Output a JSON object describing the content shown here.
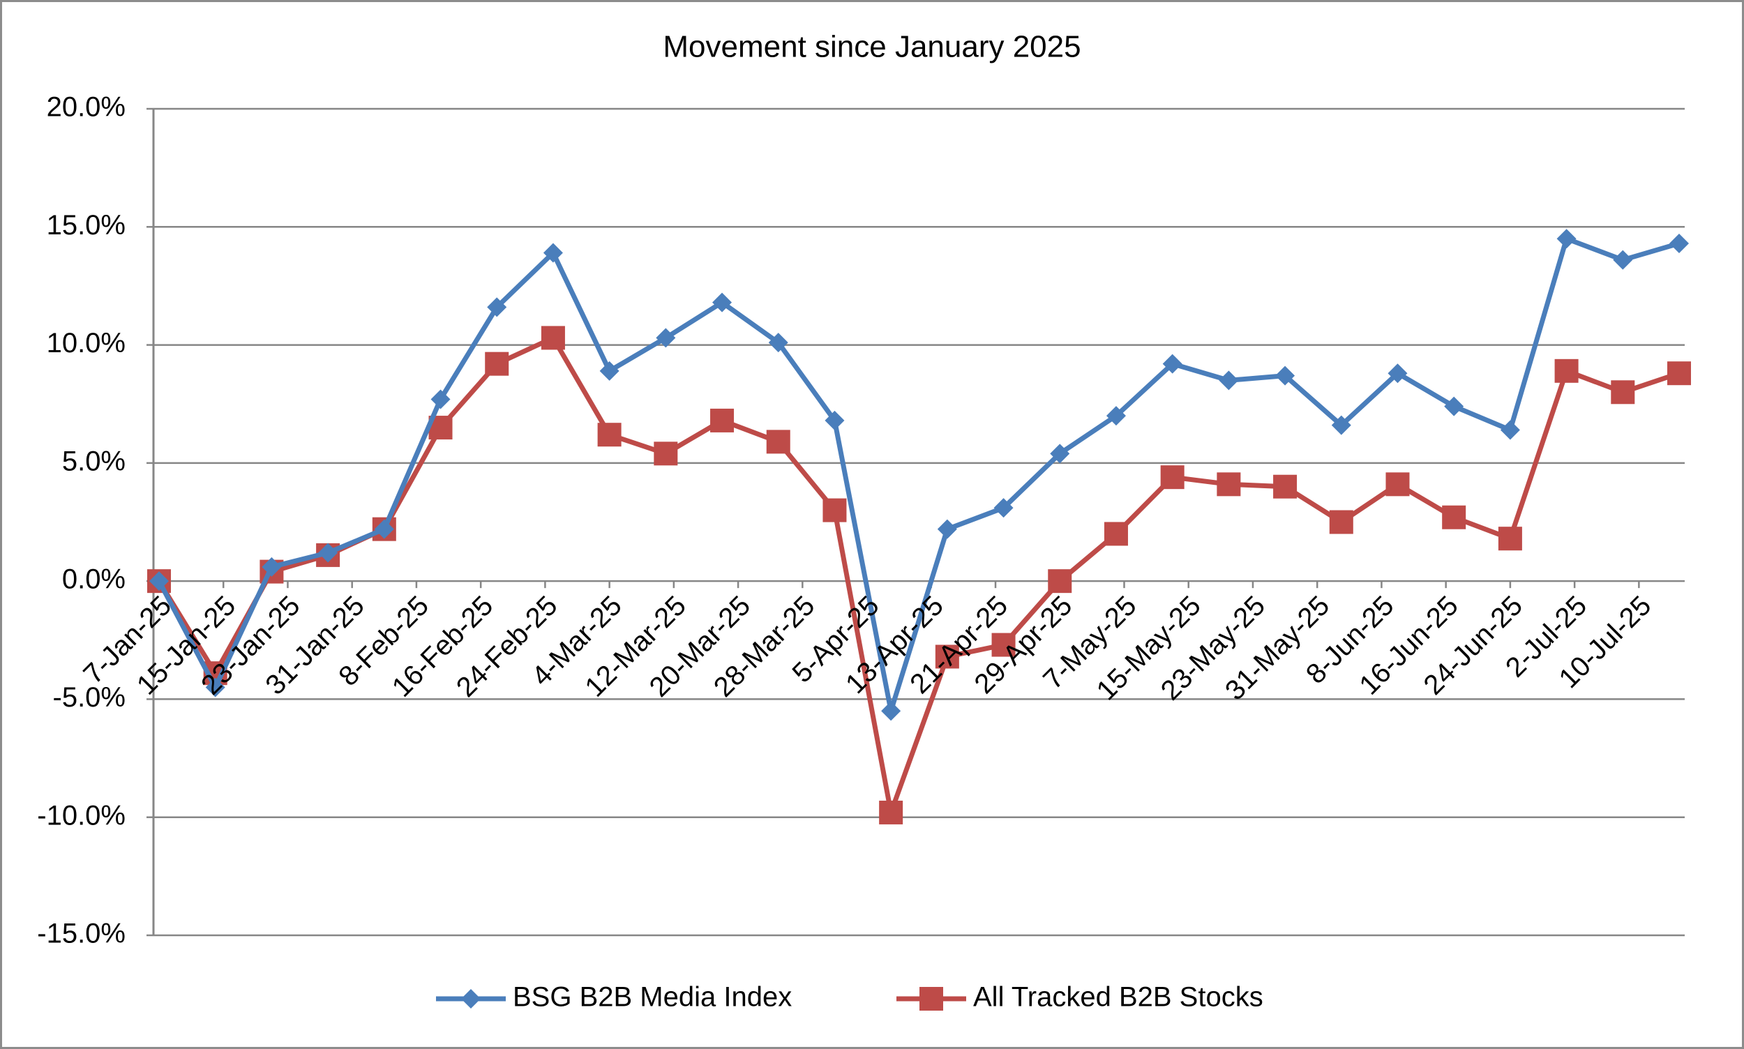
{
  "chart_data": {
    "type": "line",
    "title": "Movement since January 2025",
    "x": [
      "2025-01-07",
      "2025-01-14",
      "2025-01-21",
      "2025-01-28",
      "2025-02-04",
      "2025-02-11",
      "2025-02-18",
      "2025-02-25",
      "2025-03-04",
      "2025-03-11",
      "2025-03-18",
      "2025-03-25",
      "2025-04-01",
      "2025-04-08",
      "2025-04-15",
      "2025-04-22",
      "2025-04-29",
      "2025-05-06",
      "2025-05-13",
      "2025-05-20",
      "2025-05-27",
      "2025-06-03",
      "2025-06-10",
      "2025-06-17",
      "2025-06-24",
      "2025-07-01",
      "2025-07-08",
      "2025-07-15"
    ],
    "series": [
      {
        "name": "BSG B2B Media Index",
        "color": "#4a7ebb",
        "marker": "diamond",
        "values": [
          0,
          -4.5,
          0.6,
          1.2,
          2.2,
          7.7,
          11.6,
          13.9,
          8.9,
          10.3,
          11.8,
          10.1,
          6.8,
          -5.5,
          2.2,
          3.1,
          5.4,
          7.0,
          9.2,
          8.5,
          8.7,
          6.6,
          8.8,
          7.4,
          6.4,
          14.5,
          13.6,
          14.3
        ]
      },
      {
        "name": "All Tracked B2B Stocks",
        "color": "#be4b48",
        "marker": "square",
        "values": [
          0,
          -3.9,
          0.4,
          1.1,
          2.2,
          6.5,
          9.2,
          10.3,
          6.2,
          5.4,
          6.8,
          5.9,
          3.0,
          -9.8,
          -3.2,
          -2.7,
          0.0,
          2.0,
          4.4,
          4.1,
          4.0,
          2.5,
          4.1,
          2.7,
          1.8,
          8.9,
          8.0,
          8.8
        ]
      }
    ],
    "xlim": [
      "2025-01-07",
      "2025-07-15"
    ],
    "xticks": [
      {
        "value": "2025-01-07",
        "label": "7-Jan-25"
      },
      {
        "value": "2025-01-15",
        "label": "15-Jan-25"
      },
      {
        "value": "2025-01-23",
        "label": "23-Jan-25"
      },
      {
        "value": "2025-01-31",
        "label": "31-Jan-25"
      },
      {
        "value": "2025-02-08",
        "label": "8-Feb-25"
      },
      {
        "value": "2025-02-16",
        "label": "16-Feb-25"
      },
      {
        "value": "2025-02-24",
        "label": "24-Feb-25"
      },
      {
        "value": "2025-03-04",
        "label": "4-Mar-25"
      },
      {
        "value": "2025-03-12",
        "label": "12-Mar-25"
      },
      {
        "value": "2025-03-20",
        "label": "20-Mar-25"
      },
      {
        "value": "2025-03-28",
        "label": "28-Mar-25"
      },
      {
        "value": "2025-04-05",
        "label": "5-Apr-25"
      },
      {
        "value": "2025-04-13",
        "label": "13-Apr-25"
      },
      {
        "value": "2025-04-21",
        "label": "21-Apr-25"
      },
      {
        "value": "2025-04-29",
        "label": "29-Apr-25"
      },
      {
        "value": "2025-05-07",
        "label": "7-May-25"
      },
      {
        "value": "2025-05-15",
        "label": "15-May-25"
      },
      {
        "value": "2025-05-23",
        "label": "23-May-25"
      },
      {
        "value": "2025-05-31",
        "label": "31-May-25"
      },
      {
        "value": "2025-06-08",
        "label": "8-Jun-25"
      },
      {
        "value": "2025-06-16",
        "label": "16-Jun-25"
      },
      {
        "value": "2025-06-24",
        "label": "24-Jun-25"
      },
      {
        "value": "2025-07-02",
        "label": "2-Jul-25"
      },
      {
        "value": "2025-07-10",
        "label": "10-Jul-25"
      }
    ],
    "ylim": [
      -15,
      20
    ],
    "yticks": [
      {
        "value": -15,
        "label": "-15.0%"
      },
      {
        "value": -10,
        "label": "-10.0%"
      },
      {
        "value": -5,
        "label": "-5.0%"
      },
      {
        "value": 0,
        "label": "0.0%"
      },
      {
        "value": 5,
        "label": "5.0%"
      },
      {
        "value": 10,
        "label": "10.0%"
      },
      {
        "value": 15,
        "label": "15.0%"
      },
      {
        "value": 20,
        "label": "20.0%"
      }
    ],
    "grid": true,
    "legend": "bottom"
  }
}
